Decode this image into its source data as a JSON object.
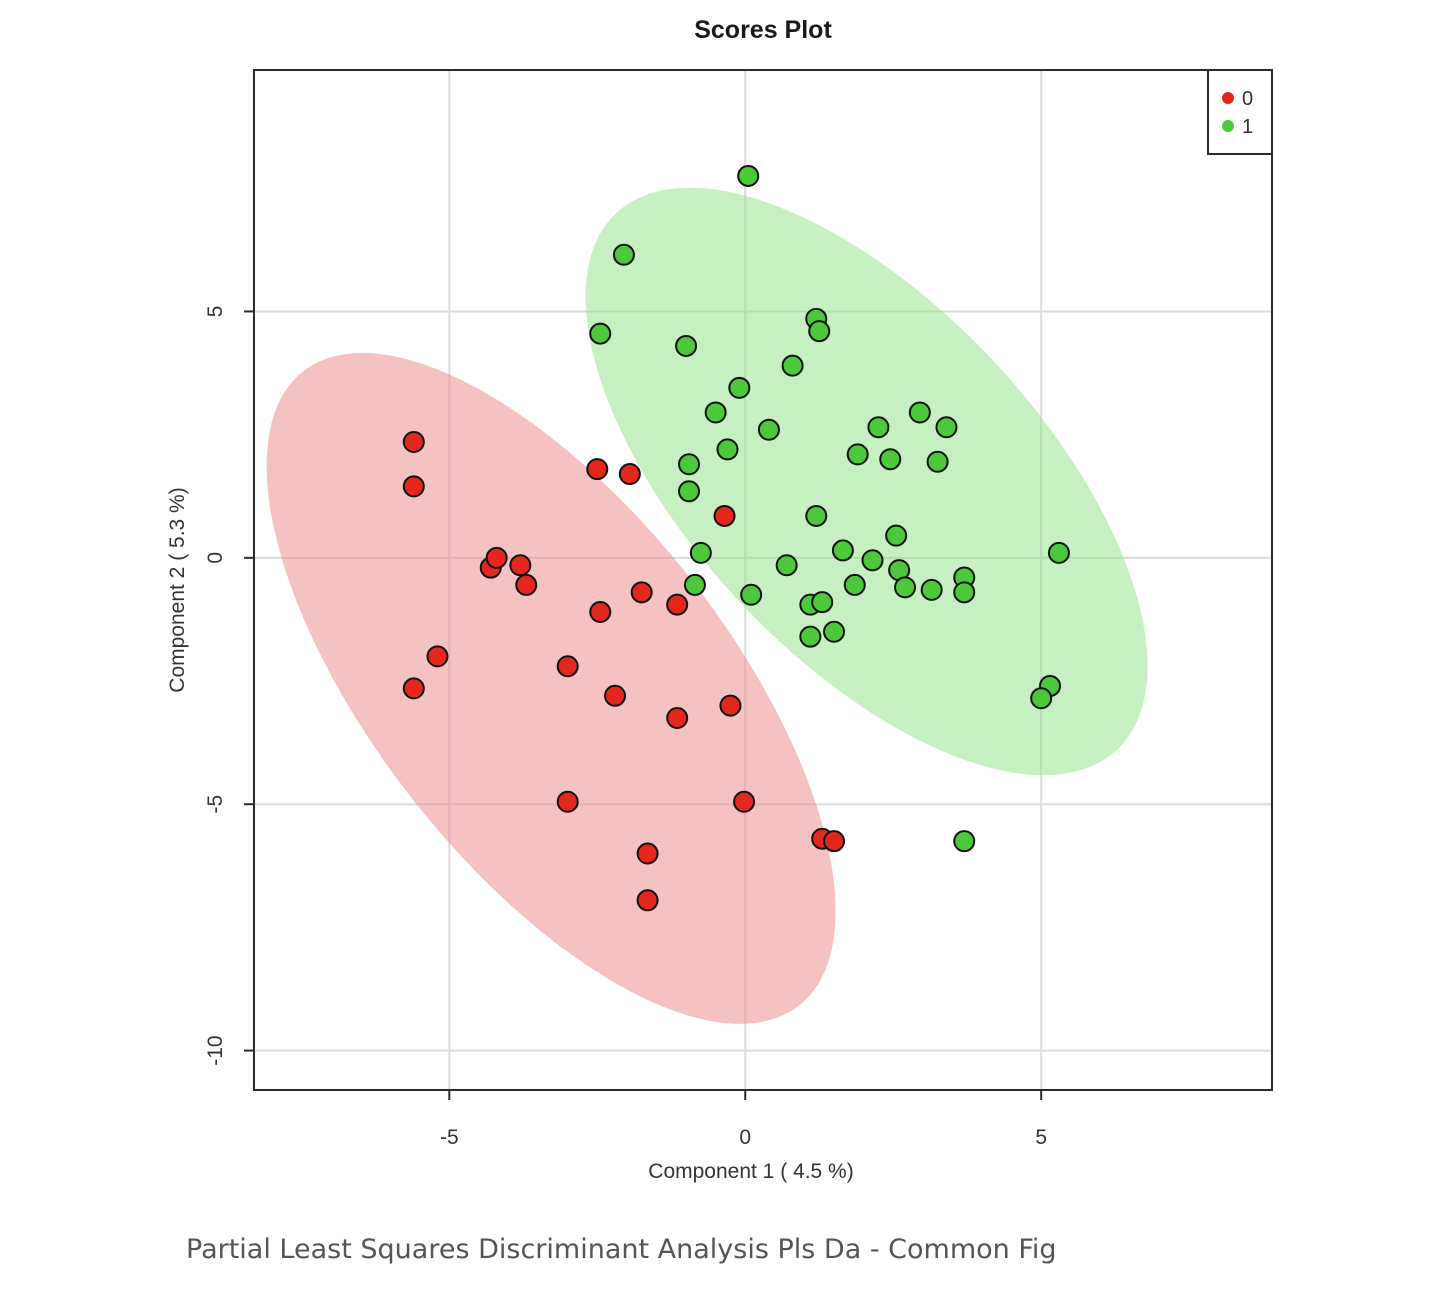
{
  "caption": "Partial Least Squares Discriminant Analysis Pls Da - Common Fig",
  "colors": {
    "group0": "#e3271d",
    "group1": "#4cc93a",
    "ellipse0": "#e98583",
    "ellipse1": "#8ee283"
  },
  "chart_data": {
    "type": "scatter",
    "title": "Scores Plot",
    "xlabel": "Component 1 ( 4.5 %)",
    "ylabel": "Component 2 ( 5.3 %)",
    "xlim": [
      -8.3,
      8.9
    ],
    "ylim": [
      -10.8,
      9.9
    ],
    "xticks": [
      -5,
      0,
      5
    ],
    "xtick_labels": [
      "-5",
      "0",
      "5"
    ],
    "yticks": [
      -10,
      -5,
      0,
      5
    ],
    "ytick_labels": [
      "-10",
      "-5",
      "0",
      "5"
    ],
    "grid": true,
    "legend_position": "top-right",
    "series": [
      {
        "name": "0",
        "color": "#e3271d",
        "points": [
          [
            -5.6,
            2.35
          ],
          [
            -5.6,
            1.45
          ],
          [
            -5.2,
            -2.0
          ],
          [
            -5.6,
            -2.65
          ],
          [
            -4.3,
            -0.2
          ],
          [
            -4.2,
            0.0
          ],
          [
            -3.8,
            -0.15
          ],
          [
            -3.7,
            -0.55
          ],
          [
            -2.5,
            1.8
          ],
          [
            -1.95,
            1.7
          ],
          [
            -2.45,
            -1.1
          ],
          [
            -3.0,
            -2.2
          ],
          [
            -2.2,
            -2.8
          ],
          [
            -1.75,
            -0.7
          ],
          [
            -1.15,
            -0.95
          ],
          [
            -0.35,
            0.85
          ],
          [
            -1.15,
            -3.25
          ],
          [
            -0.25,
            -3.0
          ],
          [
            -3.0,
            -4.95
          ],
          [
            -0.02,
            -4.95
          ],
          [
            -1.65,
            -6.0
          ],
          [
            -1.65,
            -6.95
          ],
          [
            1.3,
            -5.7
          ],
          [
            1.5,
            -5.75
          ]
        ]
      },
      {
        "name": "1",
        "color": "#4cc93a",
        "points": [
          [
            0.05,
            7.75
          ],
          [
            -2.05,
            6.15
          ],
          [
            -2.45,
            4.55
          ],
          [
            -1.0,
            4.3
          ],
          [
            1.2,
            4.85
          ],
          [
            1.25,
            4.6
          ],
          [
            0.8,
            3.9
          ],
          [
            -0.1,
            3.45
          ],
          [
            -0.5,
            2.95
          ],
          [
            0.4,
            2.6
          ],
          [
            -0.3,
            2.2
          ],
          [
            -0.95,
            1.9
          ],
          [
            -0.95,
            1.35
          ],
          [
            1.9,
            2.1
          ],
          [
            2.25,
            2.65
          ],
          [
            2.45,
            2.0
          ],
          [
            2.95,
            2.95
          ],
          [
            3.4,
            2.65
          ],
          [
            3.25,
            1.95
          ],
          [
            1.2,
            0.85
          ],
          [
            1.65,
            0.15
          ],
          [
            2.55,
            0.45
          ],
          [
            2.15,
            -0.05
          ],
          [
            -0.75,
            0.1
          ],
          [
            -0.85,
            -0.55
          ],
          [
            0.7,
            -0.15
          ],
          [
            0.1,
            -0.75
          ],
          [
            1.1,
            -0.95
          ],
          [
            1.3,
            -0.9
          ],
          [
            1.85,
            -0.55
          ],
          [
            2.6,
            -0.25
          ],
          [
            2.7,
            -0.6
          ],
          [
            3.15,
            -0.65
          ],
          [
            3.7,
            -0.4
          ],
          [
            3.7,
            -0.7
          ],
          [
            5.3,
            0.1
          ],
          [
            1.1,
            -1.6
          ],
          [
            1.5,
            -1.5
          ],
          [
            5.15,
            -2.6
          ],
          [
            5.0,
            -2.85
          ],
          [
            3.7,
            -5.75
          ]
        ]
      }
    ],
    "ellipses": [
      {
        "series": "0",
        "center": [
          -3.28,
          -2.65
        ],
        "radii": [
          6.8,
          3.6
        ],
        "angle_deg": -52
      },
      {
        "series": "1",
        "center": [
          2.05,
          1.55
        ],
        "radii": [
          6.2,
          3.55
        ],
        "angle_deg": -47
      }
    ]
  }
}
